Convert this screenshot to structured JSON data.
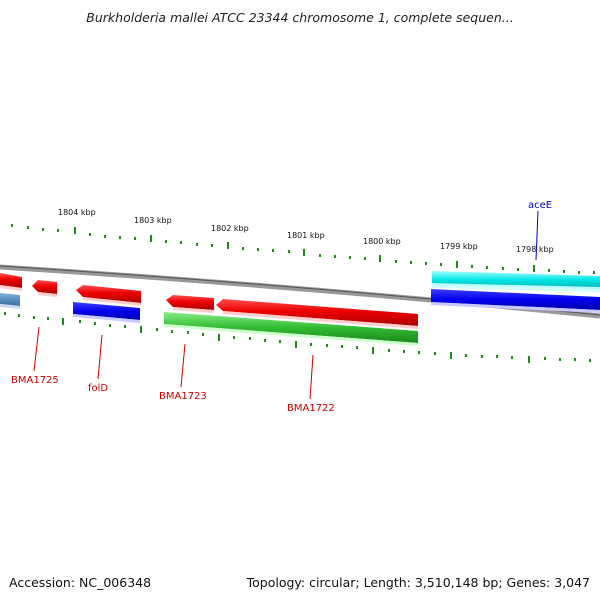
{
  "header": {
    "title": "Burkholderia mallei ATCC 23344 chromosome 1, complete sequen..."
  },
  "footer": {
    "accession": "Accession: NC_006348",
    "summary": "Topology: circular; Length: 3,510,148 bp; Genes: 3,047"
  },
  "scale": {
    "tick_labels": [
      "1804 kbp",
      "1803 kbp",
      "1802 kbp",
      "1801 kbp",
      "1800 kbp",
      "1799 kbp",
      "1798 kbp"
    ]
  },
  "genes": {
    "labels": [
      "BMA1725",
      "folD",
      "BMA1723",
      "BMA1722",
      "aceE"
    ]
  },
  "colors": {
    "forward_feature": "#00e5e5",
    "forward_cds": "#0000ee",
    "reverse_cds": "#ee0000",
    "reverse_rna": "#22bb22",
    "backbone": "#888888",
    "tick": "#228822",
    "label_red": "#cc0000",
    "label_blue": "#0000cc"
  }
}
